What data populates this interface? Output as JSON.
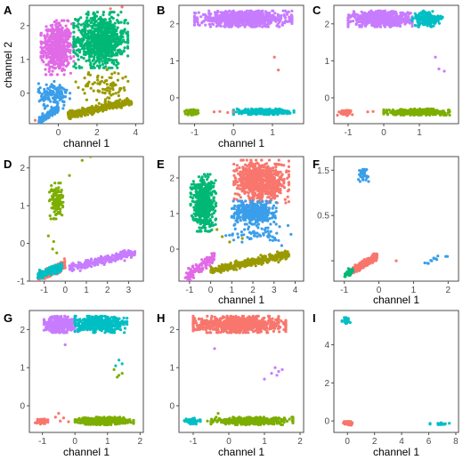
{
  "figure": {
    "colors": {
      "red": "#F8766D",
      "olive": "#7CAE00",
      "green": "#00B875",
      "teal": "#00BFC4",
      "blue": "#3A9EEA",
      "purple": "#C77CFF",
      "magenta": "#E16AE6",
      "darkolive": "#9A9A00"
    }
  },
  "chart_data": [
    {
      "panel": "A",
      "type": "scatter",
      "xlabel": "",
      "ylabel": "channel 2",
      "xlim": [
        -1.5,
        4.4
      ],
      "ylim": [
        -0.9,
        2.6
      ],
      "xticks": [
        0,
        2,
        4
      ],
      "yticks": [
        0,
        1,
        2
      ],
      "clusters": [
        {
          "color": "magenta",
          "shape": "rect",
          "n": 520,
          "x": [
            -0.9,
            0.8
          ],
          "y": [
            0.55,
            2.15
          ]
        },
        {
          "color": "green",
          "shape": "rect",
          "n": 850,
          "x": [
            0.8,
            3.6
          ],
          "y": [
            0.75,
            2.4
          ]
        },
        {
          "color": "darkolive",
          "shape": "rect",
          "n": 90,
          "x": [
            0.9,
            3.9
          ],
          "y": [
            -0.3,
            0.7
          ]
        },
        {
          "color": "darkolive",
          "shape": "band",
          "n": 420,
          "x": [
            0.5,
            3.8
          ],
          "y": [
            -0.65,
            -0.25
          ],
          "w": 0.05
        },
        {
          "color": "blue",
          "shape": "rect",
          "n": 140,
          "x": [
            -1.1,
            0.6
          ],
          "y": [
            -0.45,
            0.35
          ]
        },
        {
          "color": "blue",
          "shape": "band",
          "n": 160,
          "x": [
            -1.0,
            0.0
          ],
          "y": [
            -0.8,
            -0.45
          ],
          "w": 0.05
        },
        {
          "color": "red",
          "shape": "points",
          "pts": [
            [
              -1.2,
              -0.8
            ],
            [
              2.7,
              2.5
            ],
            [
              3.3,
              2.55
            ]
          ]
        }
      ]
    },
    {
      "panel": "B",
      "type": "scatter",
      "xlabel": "channel 1",
      "ylabel": "",
      "xlim": [
        -1.4,
        1.8
      ],
      "ylim": [
        -0.7,
        2.5
      ],
      "xticks": [
        -1,
        0,
        1
      ],
      "yticks": [
        0,
        1,
        2
      ],
      "clusters": [
        {
          "color": "purple",
          "shape": "rect",
          "n": 900,
          "x": [
            -1.0,
            1.5
          ],
          "y": [
            1.92,
            2.35
          ]
        },
        {
          "color": "olive",
          "shape": "rect",
          "n": 70,
          "x": [
            -1.25,
            -0.85
          ],
          "y": [
            -0.48,
            -0.32
          ]
        },
        {
          "color": "teal",
          "shape": "rect",
          "n": 320,
          "x": [
            0.0,
            1.55
          ],
          "y": [
            -0.45,
            -0.3
          ]
        },
        {
          "color": "red",
          "shape": "points",
          "pts": [
            [
              1.05,
              1.1
            ],
            [
              1.15,
              0.75
            ],
            [
              -0.5,
              -0.38
            ],
            [
              -0.35,
              -0.37
            ],
            [
              0.0,
              -0.38
            ],
            [
              -0.15,
              -0.4
            ]
          ]
        }
      ]
    },
    {
      "panel": "C",
      "type": "scatter",
      "xlabel": "",
      "ylabel": "",
      "xlim": [
        -1.4,
        2.1
      ],
      "ylim": [
        -0.7,
        2.5
      ],
      "xticks": [
        -1,
        0,
        1
      ],
      "yticks": [
        0,
        1,
        2
      ],
      "clusters": [
        {
          "color": "purple",
          "shape": "rect",
          "n": 620,
          "x": [
            -1.0,
            0.8
          ],
          "y": [
            1.92,
            2.35
          ]
        },
        {
          "color": "teal",
          "shape": "rect",
          "n": 200,
          "x": [
            0.8,
            1.65
          ],
          "y": [
            1.92,
            2.35
          ]
        },
        {
          "color": "red",
          "shape": "rect",
          "n": 60,
          "x": [
            -1.3,
            -0.85
          ],
          "y": [
            -0.48,
            -0.32
          ]
        },
        {
          "color": "olive",
          "shape": "rect",
          "n": 420,
          "x": [
            0.0,
            1.85
          ],
          "y": [
            -0.47,
            -0.3
          ]
        },
        {
          "color": "red",
          "shape": "points",
          "pts": [
            [
              -0.45,
              -0.38
            ],
            [
              -0.3,
              -0.37
            ]
          ]
        },
        {
          "color": "purple",
          "shape": "points",
          "pts": [
            [
              1.45,
              1.1
            ],
            [
              1.55,
              0.78
            ],
            [
              1.7,
              0.72
            ]
          ]
        }
      ]
    },
    {
      "panel": "D",
      "type": "scatter",
      "xlabel": "",
      "ylabel": "",
      "xlim": [
        -1.7,
        3.7
      ],
      "ylim": [
        -1.0,
        2.3
      ],
      "xticks": [
        -1,
        0,
        1,
        2,
        3
      ],
      "yticks": [
        -1,
        0,
        1,
        2
      ],
      "clusters": [
        {
          "color": "olive",
          "shape": "rect",
          "n": 110,
          "x": [
            -0.75,
            -0.1
          ],
          "y": [
            0.65,
            1.6
          ]
        },
        {
          "color": "olive",
          "shape": "points",
          "pts": [
            [
              0.2,
              1.8
            ],
            [
              0.8,
              2.2
            ],
            [
              1.2,
              2.3
            ],
            [
              -0.6,
              -0.15
            ],
            [
              -0.4,
              -0.25
            ],
            [
              -0.8,
              0.2
            ],
            [
              -0.55,
              0.05
            ]
          ]
        },
        {
          "color": "red",
          "shape": "band",
          "n": 220,
          "x": [
            -1.3,
            0.0
          ],
          "y": [
            -0.9,
            -0.55
          ],
          "w": 0.06
        },
        {
          "color": "teal",
          "shape": "band",
          "n": 200,
          "x": [
            -1.3,
            -0.15
          ],
          "y": [
            -0.85,
            -0.6
          ],
          "w": 0.05
        },
        {
          "color": "purple",
          "shape": "band",
          "n": 240,
          "x": [
            0.2,
            3.3
          ],
          "y": [
            -0.65,
            -0.25
          ],
          "w": 0.05
        }
      ]
    },
    {
      "panel": "E",
      "type": "scatter",
      "xlabel": "channel 1",
      "ylabel": "",
      "xlim": [
        -1.5,
        4.4
      ],
      "ylim": [
        -0.9,
        2.6
      ],
      "xticks": [
        -1,
        0,
        1,
        2,
        3,
        4
      ],
      "yticks": [
        0,
        1,
        2
      ],
      "clusters": [
        {
          "color": "green",
          "shape": "rect",
          "n": 500,
          "x": [
            -0.95,
            0.25
          ],
          "y": [
            0.5,
            2.1
          ]
        },
        {
          "color": "red",
          "shape": "rect",
          "n": 700,
          "x": [
            1.1,
            3.7
          ],
          "y": [
            1.3,
            2.5
          ]
        },
        {
          "color": "blue",
          "shape": "rect",
          "n": 380,
          "x": [
            1.0,
            3.1
          ],
          "y": [
            0.7,
            1.35
          ]
        },
        {
          "color": "blue",
          "shape": "rect",
          "n": 60,
          "x": [
            0.7,
            3.8
          ],
          "y": [
            0.1,
            0.7
          ]
        },
        {
          "color": "darkolive",
          "shape": "band",
          "n": 420,
          "x": [
            0.0,
            3.7
          ],
          "y": [
            -0.6,
            -0.15
          ],
          "w": 0.05
        },
        {
          "color": "darkolive",
          "shape": "points",
          "pts": [
            [
              0.3,
              0.55
            ],
            [
              0.55,
              0.35
            ],
            [
              0.9,
              0.2
            ],
            [
              1.5,
              0.3
            ]
          ]
        },
        {
          "color": "magenta",
          "shape": "band",
          "n": 110,
          "x": [
            -1.2,
            0.2
          ],
          "y": [
            -0.8,
            -0.2
          ],
          "w": 0.08
        }
      ]
    },
    {
      "panel": "F",
      "type": "scatter",
      "xlabel": "channel 1",
      "ylabel": "",
      "xlim": [
        -1.3,
        2.3
      ],
      "ylim": [
        -0.95,
        1.8
      ],
      "xticks": [
        -1,
        0,
        1,
        2
      ],
      "yticks": [
        -0.5,
        0.5,
        1.5
      ],
      "ytick_labels": [
        "",
        "0.5",
        "1.5"
      ],
      "clusters": [
        {
          "color": "blue",
          "shape": "rect",
          "n": 35,
          "x": [
            -0.6,
            -0.3
          ],
          "y": [
            1.25,
            1.6
          ]
        },
        {
          "color": "red",
          "shape": "band",
          "n": 340,
          "x": [
            -0.75,
            -0.05
          ],
          "y": [
            -0.72,
            -0.4
          ],
          "w": 0.04
        },
        {
          "color": "green",
          "shape": "band",
          "n": 50,
          "x": [
            -1.0,
            -0.75
          ],
          "y": [
            -0.82,
            -0.72
          ],
          "w": 0.03
        },
        {
          "color": "blue",
          "shape": "band",
          "n": 12,
          "x": [
            1.3,
            2.0
          ],
          "y": [
            -0.55,
            -0.38
          ],
          "w": 0.03
        },
        {
          "color": "red",
          "shape": "points",
          "pts": [
            [
              0.5,
              -0.5
            ]
          ]
        }
      ]
    },
    {
      "panel": "G",
      "type": "scatter",
      "xlabel": "channel 1",
      "ylabel": "",
      "xlim": [
        -1.4,
        2.1
      ],
      "ylim": [
        -0.7,
        2.5
      ],
      "xticks": [
        -1,
        0,
        1,
        2
      ],
      "yticks": [
        0,
        1,
        2
      ],
      "clusters": [
        {
          "color": "purple",
          "shape": "rect",
          "n": 500,
          "x": [
            -0.95,
            0.0
          ],
          "y": [
            1.92,
            2.35
          ]
        },
        {
          "color": "teal",
          "shape": "rect",
          "n": 480,
          "x": [
            0.0,
            1.6
          ],
          "y": [
            1.92,
            2.35
          ]
        },
        {
          "color": "red",
          "shape": "rect",
          "n": 60,
          "x": [
            -1.25,
            -0.8
          ],
          "y": [
            -0.48,
            -0.32
          ]
        },
        {
          "color": "red",
          "shape": "points",
          "pts": [
            [
              -0.6,
              -0.3
            ],
            [
              -0.45,
              -0.4
            ],
            [
              -0.35,
              -0.32
            ],
            [
              -0.2,
              -0.42
            ],
            [
              -0.5,
              -0.2
            ]
          ]
        },
        {
          "color": "olive",
          "shape": "rect",
          "n": 450,
          "x": [
            0.0,
            1.8
          ],
          "y": [
            -0.5,
            -0.3
          ]
        },
        {
          "color": "olive",
          "shape": "points",
          "pts": [
            [
              1.2,
              0.95
            ],
            [
              1.35,
              0.8
            ],
            [
              1.45,
              0.85
            ],
            [
              1.3,
              0.75
            ]
          ]
        },
        {
          "color": "teal",
          "shape": "points",
          "pts": [
            [
              1.35,
              1.2
            ],
            [
              1.45,
              1.1
            ],
            [
              1.25,
              1.05
            ]
          ]
        },
        {
          "color": "purple",
          "shape": "points",
          "pts": [
            [
              -0.3,
              1.6
            ]
          ]
        }
      ]
    },
    {
      "panel": "H",
      "type": "scatter",
      "xlabel": "channel 1",
      "ylabel": "",
      "xlim": [
        -1.4,
        2.1
      ],
      "ylim": [
        -0.7,
        2.5
      ],
      "xticks": [
        -1,
        0,
        1,
        2
      ],
      "yticks": [
        0,
        1,
        2
      ],
      "clusters": [
        {
          "color": "red",
          "shape": "rect",
          "n": 950,
          "x": [
            -1.0,
            1.6
          ],
          "y": [
            1.92,
            2.35
          ]
        },
        {
          "color": "teal",
          "shape": "rect",
          "n": 60,
          "x": [
            -1.25,
            -0.8
          ],
          "y": [
            -0.48,
            -0.32
          ]
        },
        {
          "color": "olive",
          "shape": "rect",
          "n": 480,
          "x": [
            -0.5,
            1.8
          ],
          "y": [
            -0.5,
            -0.3
          ]
        },
        {
          "color": "olive",
          "shape": "points",
          "pts": [
            [
              -0.6,
              -0.4
            ],
            [
              -0.3,
              -0.2
            ]
          ]
        },
        {
          "color": "purple",
          "shape": "points",
          "pts": [
            [
              1.3,
              1.0
            ],
            [
              1.4,
              0.9
            ],
            [
              1.5,
              0.95
            ],
            [
              1.35,
              0.8
            ],
            [
              1.2,
              0.85
            ],
            [
              1.0,
              0.7
            ],
            [
              -0.4,
              1.5
            ]
          ]
        }
      ]
    },
    {
      "panel": "I",
      "type": "scatter",
      "xlabel": "channel 1",
      "ylabel": "",
      "xlim": [
        -1.0,
        8.2
      ],
      "ylim": [
        -0.6,
        5.8
      ],
      "xticks": [
        0,
        2,
        4,
        6,
        8
      ],
      "yticks": [
        0,
        2,
        4
      ],
      "clusters": [
        {
          "color": "teal",
          "shape": "rect",
          "n": 25,
          "x": [
            -0.4,
            0.2
          ],
          "y": [
            5.1,
            5.45
          ]
        },
        {
          "color": "red",
          "shape": "rect",
          "n": 110,
          "x": [
            -0.3,
            0.35
          ],
          "y": [
            -0.22,
            -0.02
          ]
        },
        {
          "color": "teal",
          "shape": "rect",
          "n": 18,
          "x": [
            6.1,
            7.6
          ],
          "y": [
            -0.22,
            -0.08
          ]
        }
      ]
    }
  ]
}
